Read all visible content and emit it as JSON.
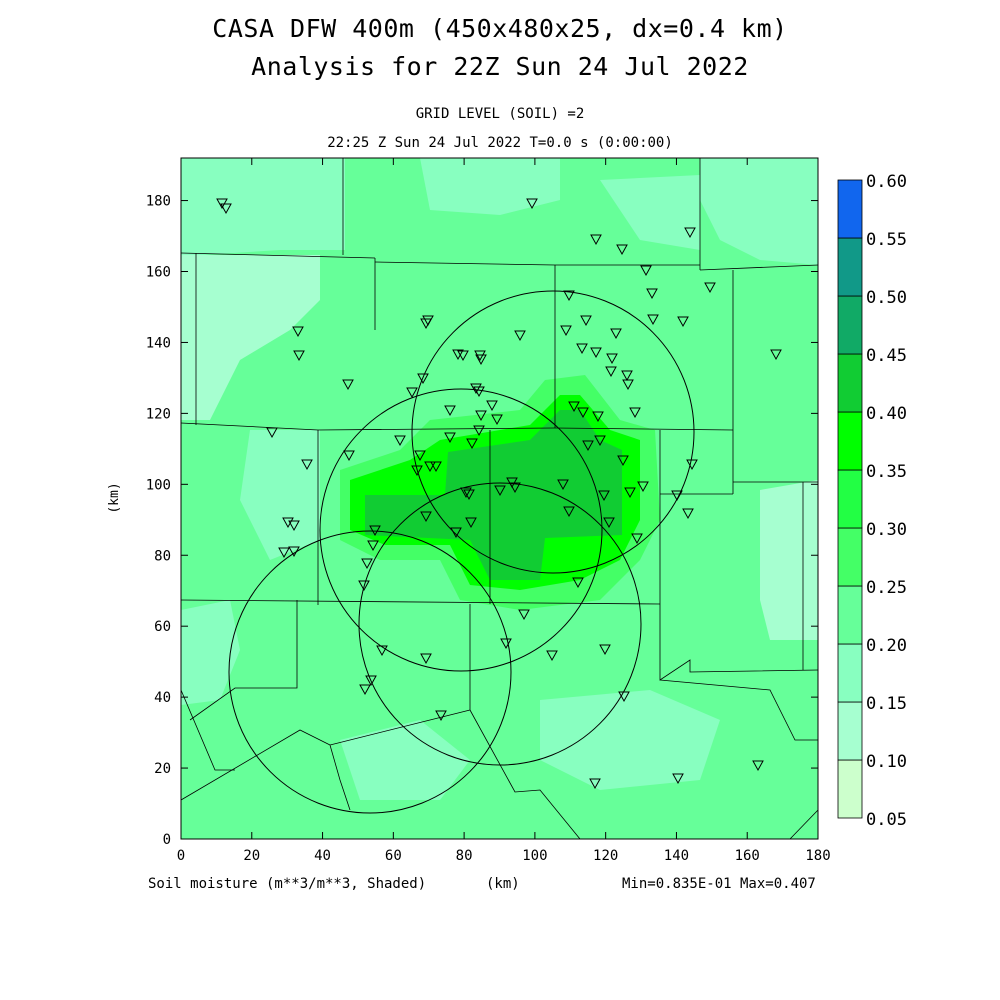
{
  "header": {
    "title_line1": "CASA DFW 400m (450x480x25, dx=0.4 km)",
    "title_line2": "Analysis for 22Z Sun 24 Jul 2022",
    "grid_level": "GRID LEVEL (SOIL) =2",
    "valid_time": "22:25 Z Sun 24 Jul 2022   T=0.0 s (0:00:00)"
  },
  "footer": {
    "variable": "Soil moisture (m**3/m**3, Shaded)",
    "x_unit": "(km)",
    "minmax": "Min=0.835E-01 Max=0.407"
  },
  "axes": {
    "y_label": "(km)",
    "x_ticks": [
      "0",
      "20",
      "40",
      "60",
      "80",
      "100",
      "120",
      "140",
      "160",
      "180"
    ],
    "y_ticks": [
      "0",
      "20",
      "40",
      "60",
      "80",
      "100",
      "120",
      "140",
      "160",
      "180"
    ]
  },
  "colorbar": {
    "labels": [
      "0.05",
      "0.10",
      "0.15",
      "0.20",
      "0.25",
      "0.30",
      "0.35",
      "0.40",
      "0.45",
      "0.50",
      "0.55",
      "0.60"
    ],
    "colors": [
      "#ccffcc",
      "#a6ffd0",
      "#88ffc0",
      "#66ff99",
      "#44ff66",
      "#22ff44",
      "#00ff00",
      "#11cc33",
      "#11aa66",
      "#119988",
      "#1166ee"
    ]
  },
  "field": {
    "background_color": "#66ff99",
    "light_color": "#a6ffd0",
    "mid_color": "#44ff66",
    "bright_color": "#00ff00",
    "dark_color": "#11cc33"
  }
}
